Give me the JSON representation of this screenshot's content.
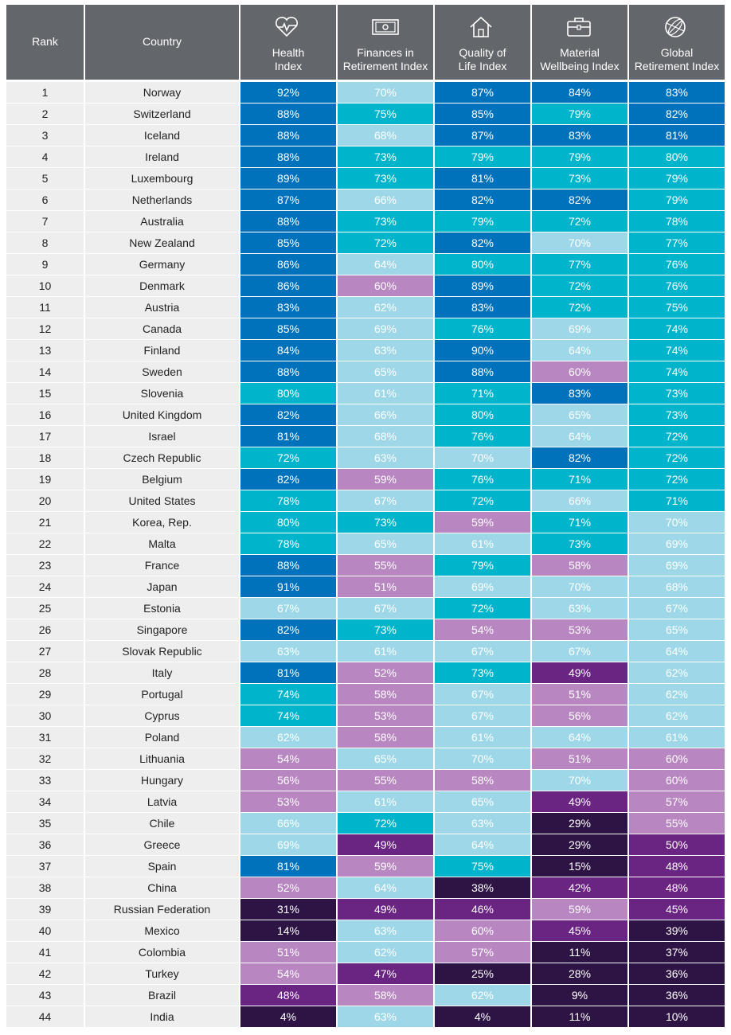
{
  "header": {
    "columns": [
      {
        "lines": [
          "Rank"
        ]
      },
      {
        "lines": [
          "Country"
        ]
      },
      {
        "lines": [
          "Health",
          "Index"
        ]
      },
      {
        "lines": [
          "Finances in",
          "Retirement Index"
        ]
      },
      {
        "lines": [
          "Quality of",
          "Life Index"
        ]
      },
      {
        "lines": [
          "Material",
          "Wellbeing Index"
        ]
      },
      {
        "lines": [
          "Global",
          "Retirement Index"
        ]
      }
    ]
  },
  "color_scale": [
    {
      "min": 81,
      "color": "#0071bb"
    },
    {
      "min": 71,
      "color": "#00b4cc"
    },
    {
      "min": 61,
      "color": "#9ed8e8"
    },
    {
      "min": 51,
      "color": "#b886c0"
    },
    {
      "min": 41,
      "color": "#6a2482"
    },
    {
      "min": 0,
      "color": "#2e1444"
    }
  ],
  "table": {
    "rows": [
      [
        "1",
        "Norway",
        "92%",
        "70%",
        "87%",
        "84%",
        "83%"
      ],
      [
        "2",
        "Switzerland",
        "88%",
        "75%",
        "85%",
        "79%",
        "82%"
      ],
      [
        "3",
        "Iceland",
        "88%",
        "68%",
        "87%",
        "83%",
        "81%"
      ],
      [
        "4",
        "Ireland",
        "88%",
        "73%",
        "79%",
        "79%",
        "80%"
      ],
      [
        "5",
        "Luxembourg",
        "89%",
        "73%",
        "81%",
        "73%",
        "79%"
      ],
      [
        "6",
        "Netherlands",
        "87%",
        "66%",
        "82%",
        "82%",
        "79%"
      ],
      [
        "7",
        "Australia",
        "88%",
        "73%",
        "79%",
        "72%",
        "78%"
      ],
      [
        "8",
        "New Zealand",
        "85%",
        "72%",
        "82%",
        "70%",
        "77%"
      ],
      [
        "9",
        "Germany",
        "86%",
        "64%",
        "80%",
        "77%",
        "76%"
      ],
      [
        "10",
        "Denmark",
        "86%",
        "60%",
        "89%",
        "72%",
        "76%"
      ],
      [
        "11",
        "Austria",
        "83%",
        "62%",
        "83%",
        "72%",
        "75%"
      ],
      [
        "12",
        "Canada",
        "85%",
        "69%",
        "76%",
        "69%",
        "74%"
      ],
      [
        "13",
        "Finland",
        "84%",
        "63%",
        "90%",
        "64%",
        "74%"
      ],
      [
        "14",
        "Sweden",
        "88%",
        "65%",
        "88%",
        "60%",
        "74%"
      ],
      [
        "15",
        "Slovenia",
        "80%",
        "61%",
        "71%",
        "83%",
        "73%"
      ],
      [
        "16",
        "United Kingdom",
        "82%",
        "66%",
        "80%",
        "65%",
        "73%"
      ],
      [
        "17",
        "Israel",
        "81%",
        "68%",
        "76%",
        "64%",
        "72%"
      ],
      [
        "18",
        "Czech Republic",
        "72%",
        "63%",
        "70%",
        "82%",
        "72%"
      ],
      [
        "19",
        "Belgium",
        "82%",
        "59%",
        "76%",
        "71%",
        "72%"
      ],
      [
        "20",
        "United States",
        "78%",
        "67%",
        "72%",
        "66%",
        "71%"
      ],
      [
        "21",
        "Korea, Rep.",
        "80%",
        "73%",
        "59%",
        "71%",
        "70%"
      ],
      [
        "22",
        "Malta",
        "78%",
        "65%",
        "61%",
        "73%",
        "69%"
      ],
      [
        "23",
        "France",
        "88%",
        "55%",
        "79%",
        "58%",
        "69%"
      ],
      [
        "24",
        "Japan",
        "91%",
        "51%",
        "69%",
        "70%",
        "68%"
      ],
      [
        "25",
        "Estonia",
        "67%",
        "67%",
        "72%",
        "63%",
        "67%"
      ],
      [
        "26",
        "Singapore",
        "82%",
        "73%",
        "54%",
        "53%",
        "65%"
      ],
      [
        "27",
        "Slovak Republic",
        "63%",
        "61%",
        "67%",
        "67%",
        "64%"
      ],
      [
        "28",
        "Italy",
        "81%",
        "52%",
        "73%",
        "49%",
        "62%"
      ],
      [
        "29",
        "Portugal",
        "74%",
        "58%",
        "67%",
        "51%",
        "62%"
      ],
      [
        "30",
        "Cyprus",
        "74%",
        "53%",
        "67%",
        "56%",
        "62%"
      ],
      [
        "31",
        "Poland",
        "62%",
        "58%",
        "61%",
        "64%",
        "61%"
      ],
      [
        "32",
        "Lithuania",
        "54%",
        "65%",
        "70%",
        "51%",
        "60%"
      ],
      [
        "33",
        "Hungary",
        "56%",
        "55%",
        "58%",
        "70%",
        "60%"
      ],
      [
        "34",
        "Latvia",
        "53%",
        "61%",
        "65%",
        "49%",
        "57%"
      ],
      [
        "35",
        "Chile",
        "66%",
        "72%",
        "63%",
        "29%",
        "55%"
      ],
      [
        "36",
        "Greece",
        "69%",
        "49%",
        "64%",
        "29%",
        "50%"
      ],
      [
        "37",
        "Spain",
        "81%",
        "59%",
        "75%",
        "15%",
        "48%"
      ],
      [
        "38",
        "China",
        "52%",
        "64%",
        "38%",
        "42%",
        "48%"
      ],
      [
        "39",
        "Russian Federation",
        "31%",
        "49%",
        "46%",
        "59%",
        "45%"
      ],
      [
        "40",
        "Mexico",
        "14%",
        "63%",
        "60%",
        "45%",
        "39%"
      ],
      [
        "41",
        "Colombia",
        "51%",
        "62%",
        "57%",
        "11%",
        "37%"
      ],
      [
        "42",
        "Turkey",
        "54%",
        "47%",
        "25%",
        "28%",
        "36%"
      ],
      [
        "43",
        "Brazil",
        "48%",
        "58%",
        "62%",
        "9%",
        "36%"
      ],
      [
        "44",
        "India",
        "4%",
        "63%",
        "4%",
        "11%",
        "10%"
      ]
    ]
  }
}
